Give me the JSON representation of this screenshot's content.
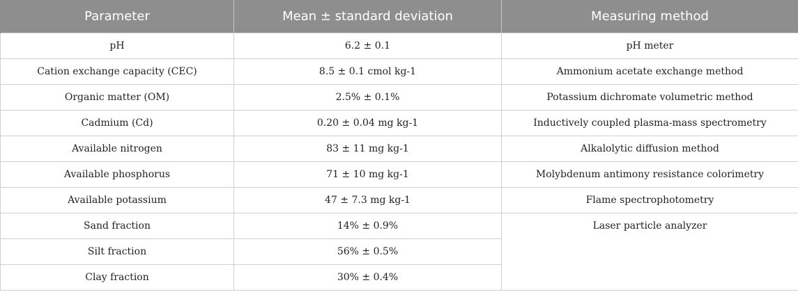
{
  "table": {
    "headers": [
      "Parameter",
      "Mean ± standard deviation",
      "Measuring method"
    ],
    "rows": [
      {
        "parameter": "pH",
        "value": "6.2 ± 0.1",
        "method": "pH meter"
      },
      {
        "parameter": "Cation exchange capacity (CEC)",
        "value": "8.5 ± 0.1 cmol kg-1",
        "method": "Ammonium acetate exchange method"
      },
      {
        "parameter": "Organic matter (OM)",
        "value": "2.5% ± 0.1%",
        "method": "Potassium dichromate volumetric method"
      },
      {
        "parameter": "Cadmium (Cd)",
        "value": "0.20 ± 0.04 mg kg-1",
        "method": "Inductively coupled plasma-mass spectrometry"
      },
      {
        "parameter": "Available nitrogen",
        "value": "83 ± 11 mg kg-1",
        "method": "Alkalolytic diffusion method"
      },
      {
        "parameter": "Available phosphorus",
        "value": "71 ± 10 mg kg-1",
        "method": "Molybdenum antimony resistance colorimetry"
      },
      {
        "parameter": "Available potassium",
        "value": "47 ± 7.3 mg kg-1",
        "method": "Flame spectrophotometry"
      },
      {
        "parameter": "Sand fraction",
        "value": "14% ± 0.9%",
        "method": "Laser particle analyzer"
      },
      {
        "parameter": "Silt fraction",
        "value": "56% ± 0.5%"
      },
      {
        "parameter": "Clay fraction",
        "value": "30% ± 0.4%"
      }
    ]
  },
  "colors": {
    "header_bg": "#8e8e8e",
    "header_text": "#ffffff",
    "grid": "#cfcfcf"
  }
}
